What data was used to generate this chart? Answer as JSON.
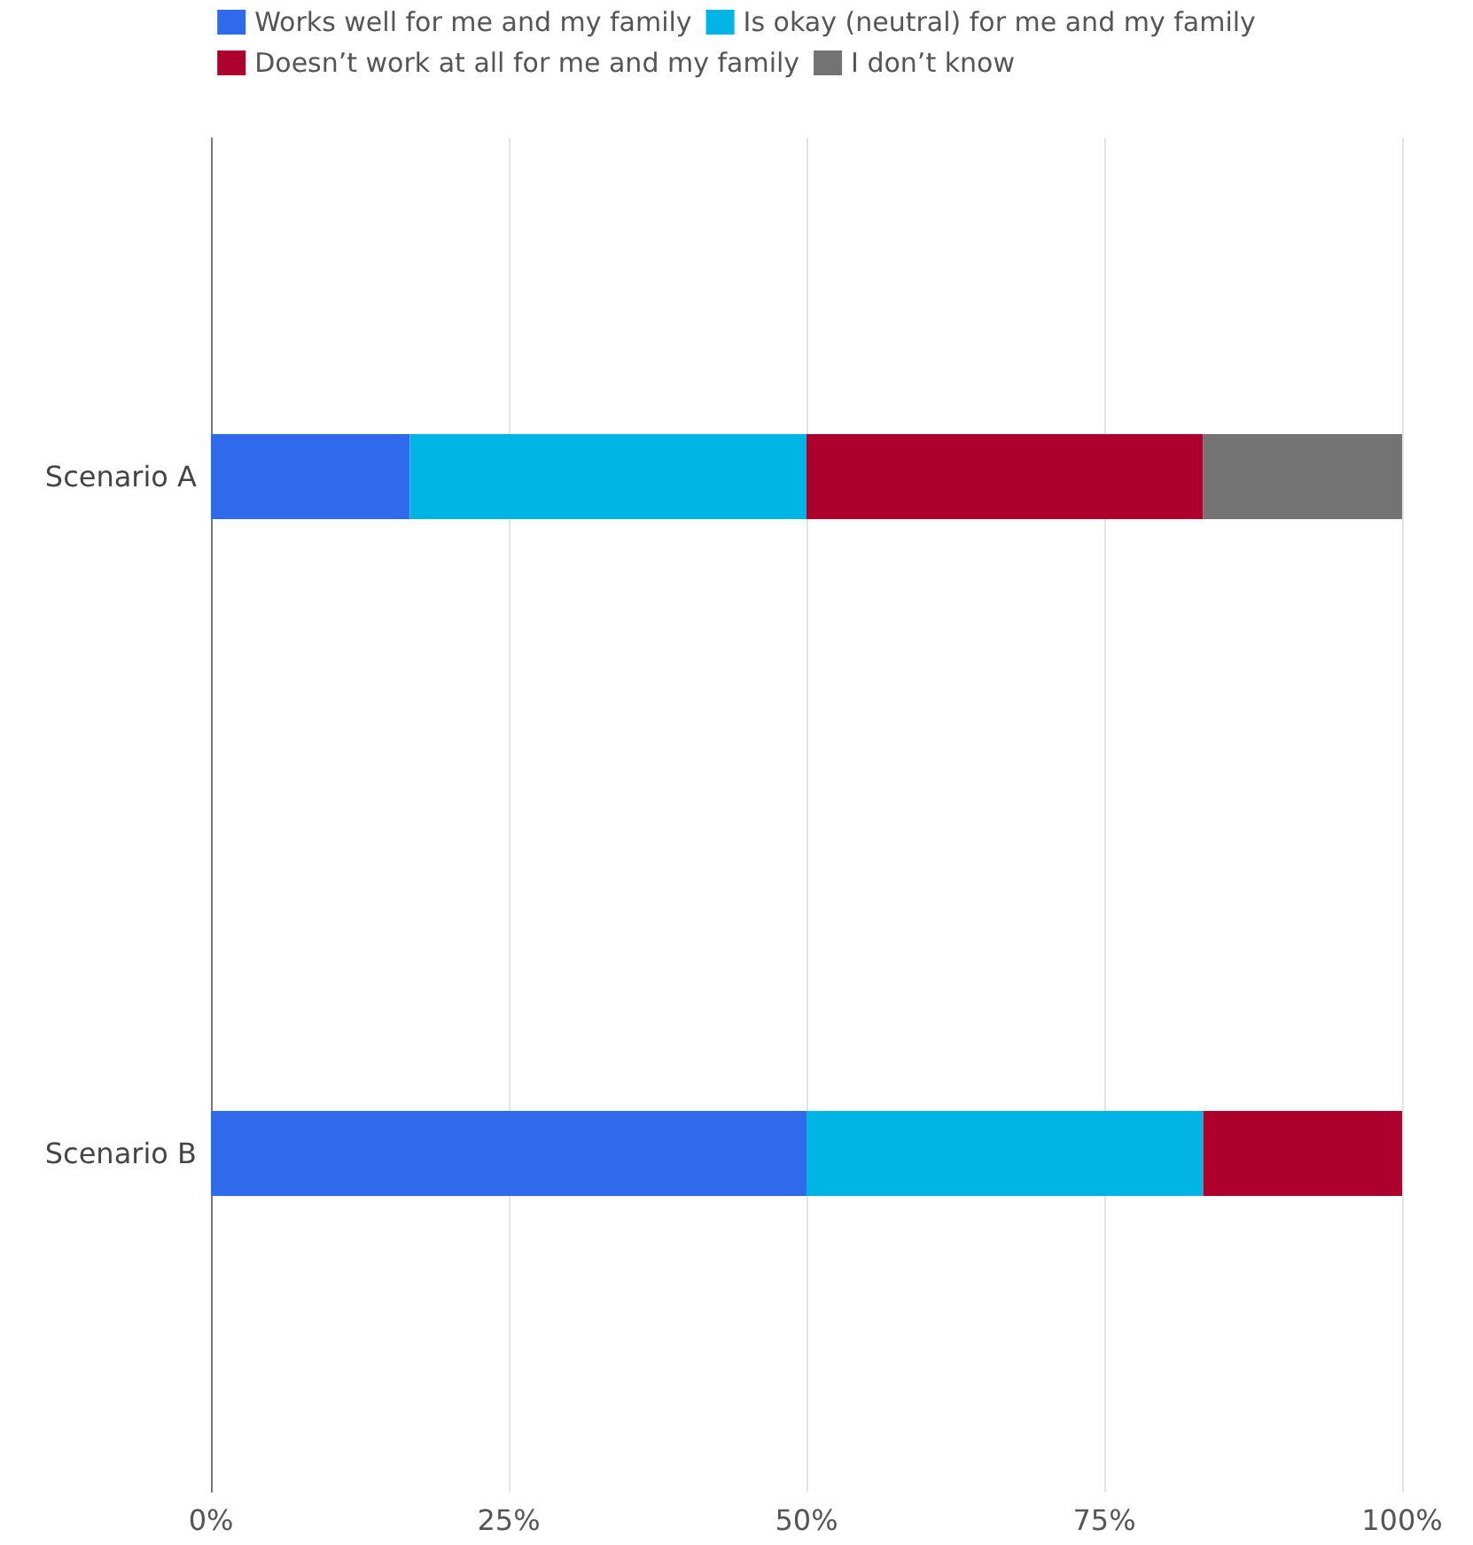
{
  "chart_data": {
    "type": "bar",
    "orientation": "horizontal",
    "stacked": true,
    "categories": [
      "Scenario A",
      "Scenario B"
    ],
    "series": [
      {
        "name": "Works well for me and my family",
        "color": "#2f6aed",
        "values": [
          16.7,
          50
        ]
      },
      {
        "name": "Is okay (neutral) for me and my family",
        "color": "#00b4e6",
        "values": [
          33.3,
          33.3
        ]
      },
      {
        "name": "Doesn’t work at all for me and my family",
        "color": "#ad002d",
        "values": [
          33.3,
          16.7
        ]
      },
      {
        "name": "I don’t know",
        "color": "#737373",
        "values": [
          16.7,
          0
        ]
      }
    ],
    "xlim": [
      0,
      100
    ],
    "xticks": [
      {
        "value": 0,
        "label": "0%"
      },
      {
        "value": 25,
        "label": "25%"
      },
      {
        "value": 50,
        "label": "50%"
      },
      {
        "value": 75,
        "label": "75%"
      },
      {
        "value": 100,
        "label": "100%"
      }
    ],
    "grid": "x",
    "legend": "top"
  }
}
